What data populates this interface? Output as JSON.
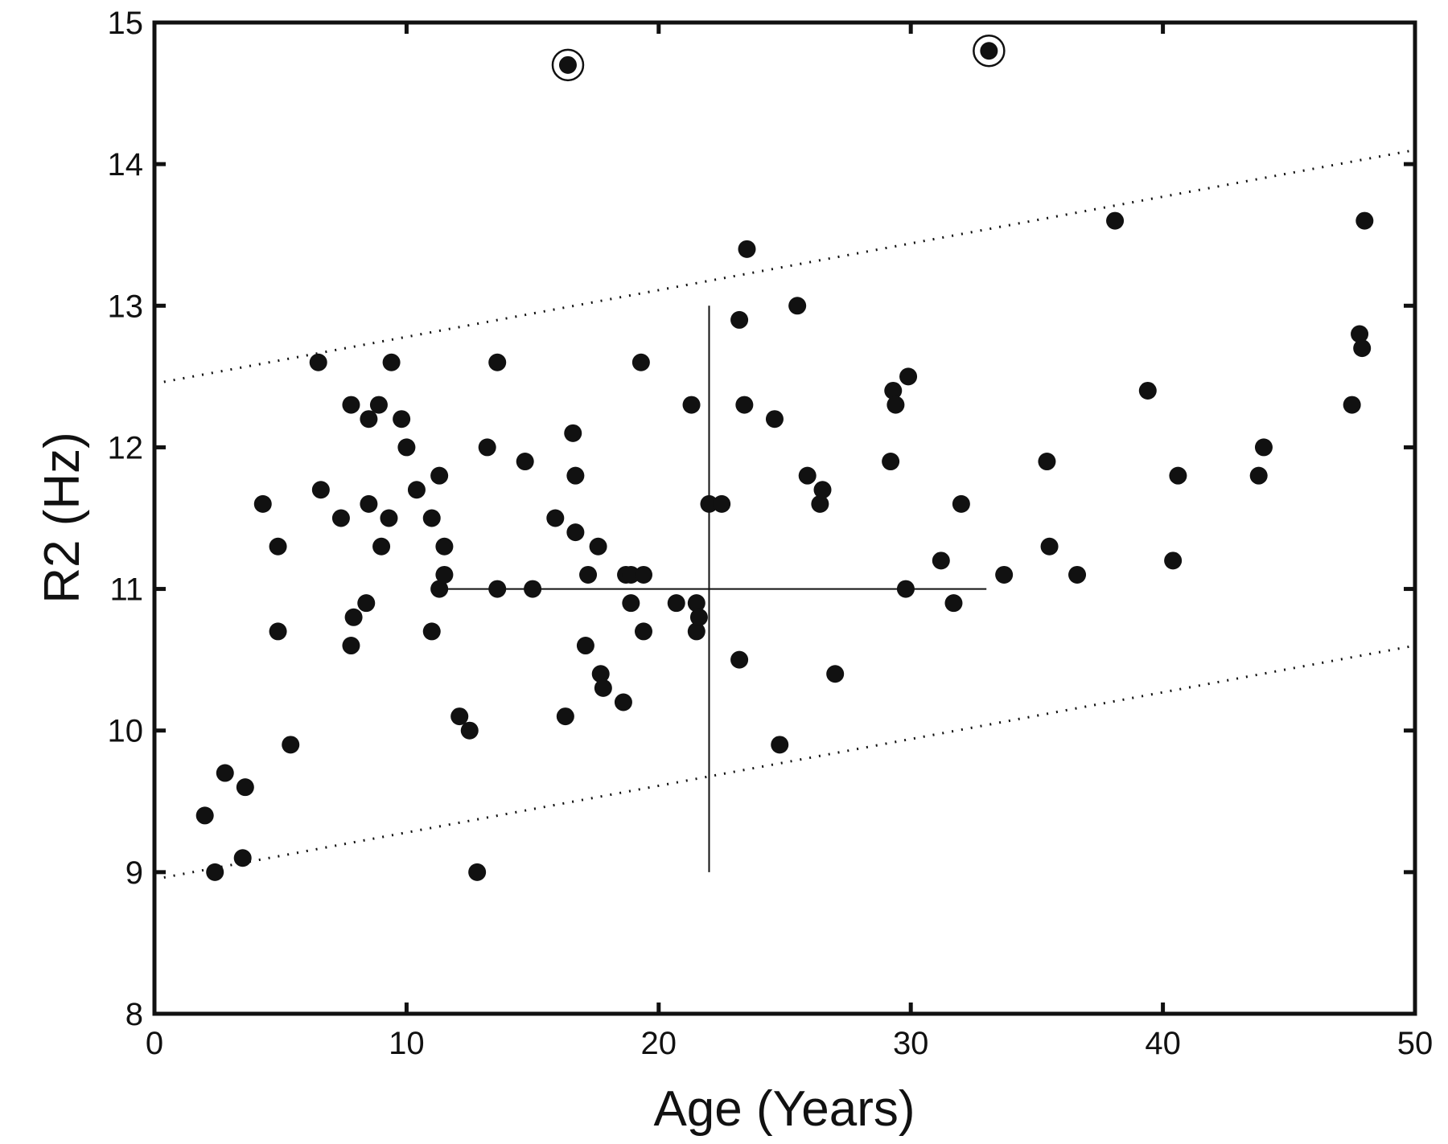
{
  "chart_data": {
    "type": "scatter",
    "title": "",
    "xlabel": "Age (Years)",
    "ylabel": "R2 (Hz)",
    "xlim": [
      0,
      50
    ],
    "ylim": [
      8,
      15
    ],
    "xticks": [
      0,
      10,
      20,
      30,
      40,
      50
    ],
    "yticks": [
      8,
      9,
      10,
      11,
      12,
      13,
      14,
      15
    ],
    "xtick_labels": [
      "0",
      "10",
      "20",
      "30",
      "40",
      "50"
    ],
    "ytick_labels": [
      "8",
      "9",
      "10",
      "11",
      "12",
      "13",
      "14",
      "15"
    ],
    "grid": false,
    "legend": "none",
    "point_color": "#111111",
    "points": [
      [
        2.0,
        9.4
      ],
      [
        2.4,
        9.0
      ],
      [
        2.8,
        9.7
      ],
      [
        3.5,
        9.1
      ],
      [
        3.6,
        9.6
      ],
      [
        4.3,
        11.6
      ],
      [
        4.9,
        11.3
      ],
      [
        4.9,
        10.7
      ],
      [
        5.4,
        9.9
      ],
      [
        6.5,
        12.6
      ],
      [
        6.6,
        11.7
      ],
      [
        7.4,
        11.5
      ],
      [
        7.8,
        12.3
      ],
      [
        7.8,
        10.6
      ],
      [
        7.9,
        10.8
      ],
      [
        8.4,
        10.9
      ],
      [
        8.5,
        12.2
      ],
      [
        8.5,
        11.6
      ],
      [
        8.9,
        12.3
      ],
      [
        9.0,
        11.3
      ],
      [
        9.3,
        11.5
      ],
      [
        9.4,
        12.6
      ],
      [
        9.8,
        12.2
      ],
      [
        10.0,
        12.0
      ],
      [
        10.4,
        11.7
      ],
      [
        11.0,
        11.5
      ],
      [
        11.0,
        10.7
      ],
      [
        11.3,
        11.8
      ],
      [
        11.3,
        11.0
      ],
      [
        11.5,
        11.3
      ],
      [
        11.5,
        11.1
      ],
      [
        12.1,
        10.1
      ],
      [
        12.5,
        10.0
      ],
      [
        12.8,
        9.0
      ],
      [
        13.2,
        12.0
      ],
      [
        13.6,
        12.6
      ],
      [
        13.6,
        11.0
      ],
      [
        14.7,
        11.9
      ],
      [
        15.0,
        11.0
      ],
      [
        15.9,
        11.5
      ],
      [
        16.3,
        10.1
      ],
      [
        16.4,
        14.7
      ],
      [
        16.6,
        12.1
      ],
      [
        16.7,
        11.8
      ],
      [
        16.7,
        11.4
      ],
      [
        17.1,
        10.6
      ],
      [
        17.2,
        11.1
      ],
      [
        17.6,
        11.3
      ],
      [
        17.7,
        10.4
      ],
      [
        17.8,
        10.3
      ],
      [
        18.6,
        10.2
      ],
      [
        18.7,
        11.1
      ],
      [
        18.9,
        11.1
      ],
      [
        18.9,
        10.9
      ],
      [
        19.3,
        12.6
      ],
      [
        19.4,
        11.1
      ],
      [
        19.4,
        10.7
      ],
      [
        20.7,
        10.9
      ],
      [
        21.3,
        12.3
      ],
      [
        21.5,
        10.9
      ],
      [
        21.5,
        10.7
      ],
      [
        21.6,
        10.8
      ],
      [
        22.0,
        11.6
      ],
      [
        22.5,
        11.6
      ],
      [
        23.2,
        12.9
      ],
      [
        23.2,
        10.5
      ],
      [
        23.4,
        12.3
      ],
      [
        23.5,
        13.4
      ],
      [
        24.6,
        12.2
      ],
      [
        24.8,
        9.9
      ],
      [
        25.5,
        13.0
      ],
      [
        25.9,
        11.8
      ],
      [
        26.4,
        11.6
      ],
      [
        26.5,
        11.7
      ],
      [
        27.0,
        10.4
      ],
      [
        29.2,
        11.9
      ],
      [
        29.3,
        12.4
      ],
      [
        29.4,
        12.3
      ],
      [
        29.8,
        11.0
      ],
      [
        29.9,
        12.5
      ],
      [
        31.2,
        11.2
      ],
      [
        31.7,
        10.9
      ],
      [
        32.0,
        11.6
      ],
      [
        33.1,
        14.8
      ],
      [
        33.7,
        11.1
      ],
      [
        35.4,
        11.9
      ],
      [
        35.5,
        11.3
      ],
      [
        36.6,
        11.1
      ],
      [
        38.1,
        13.6
      ],
      [
        39.4,
        12.4
      ],
      [
        40.4,
        11.2
      ],
      [
        40.6,
        11.8
      ],
      [
        43.8,
        11.8
      ],
      [
        44.0,
        12.0
      ],
      [
        47.5,
        12.3
      ],
      [
        47.8,
        12.8
      ],
      [
        47.9,
        12.7
      ],
      [
        48.0,
        13.6
      ]
    ],
    "outliers": [
      [
        16.4,
        14.7
      ],
      [
        33.1,
        14.8
      ]
    ],
    "crosshair": {
      "center": [
        22.0,
        11.0
      ],
      "x_range": [
        11.5,
        33.0
      ],
      "y_range": [
        9.0,
        13.0
      ]
    },
    "bounds": {
      "upper": {
        "x": [
          0,
          50
        ],
        "y": [
          12.45,
          14.1
        ]
      },
      "lower": {
        "x": [
          0,
          50
        ],
        "y": [
          8.95,
          10.6
        ]
      }
    }
  }
}
